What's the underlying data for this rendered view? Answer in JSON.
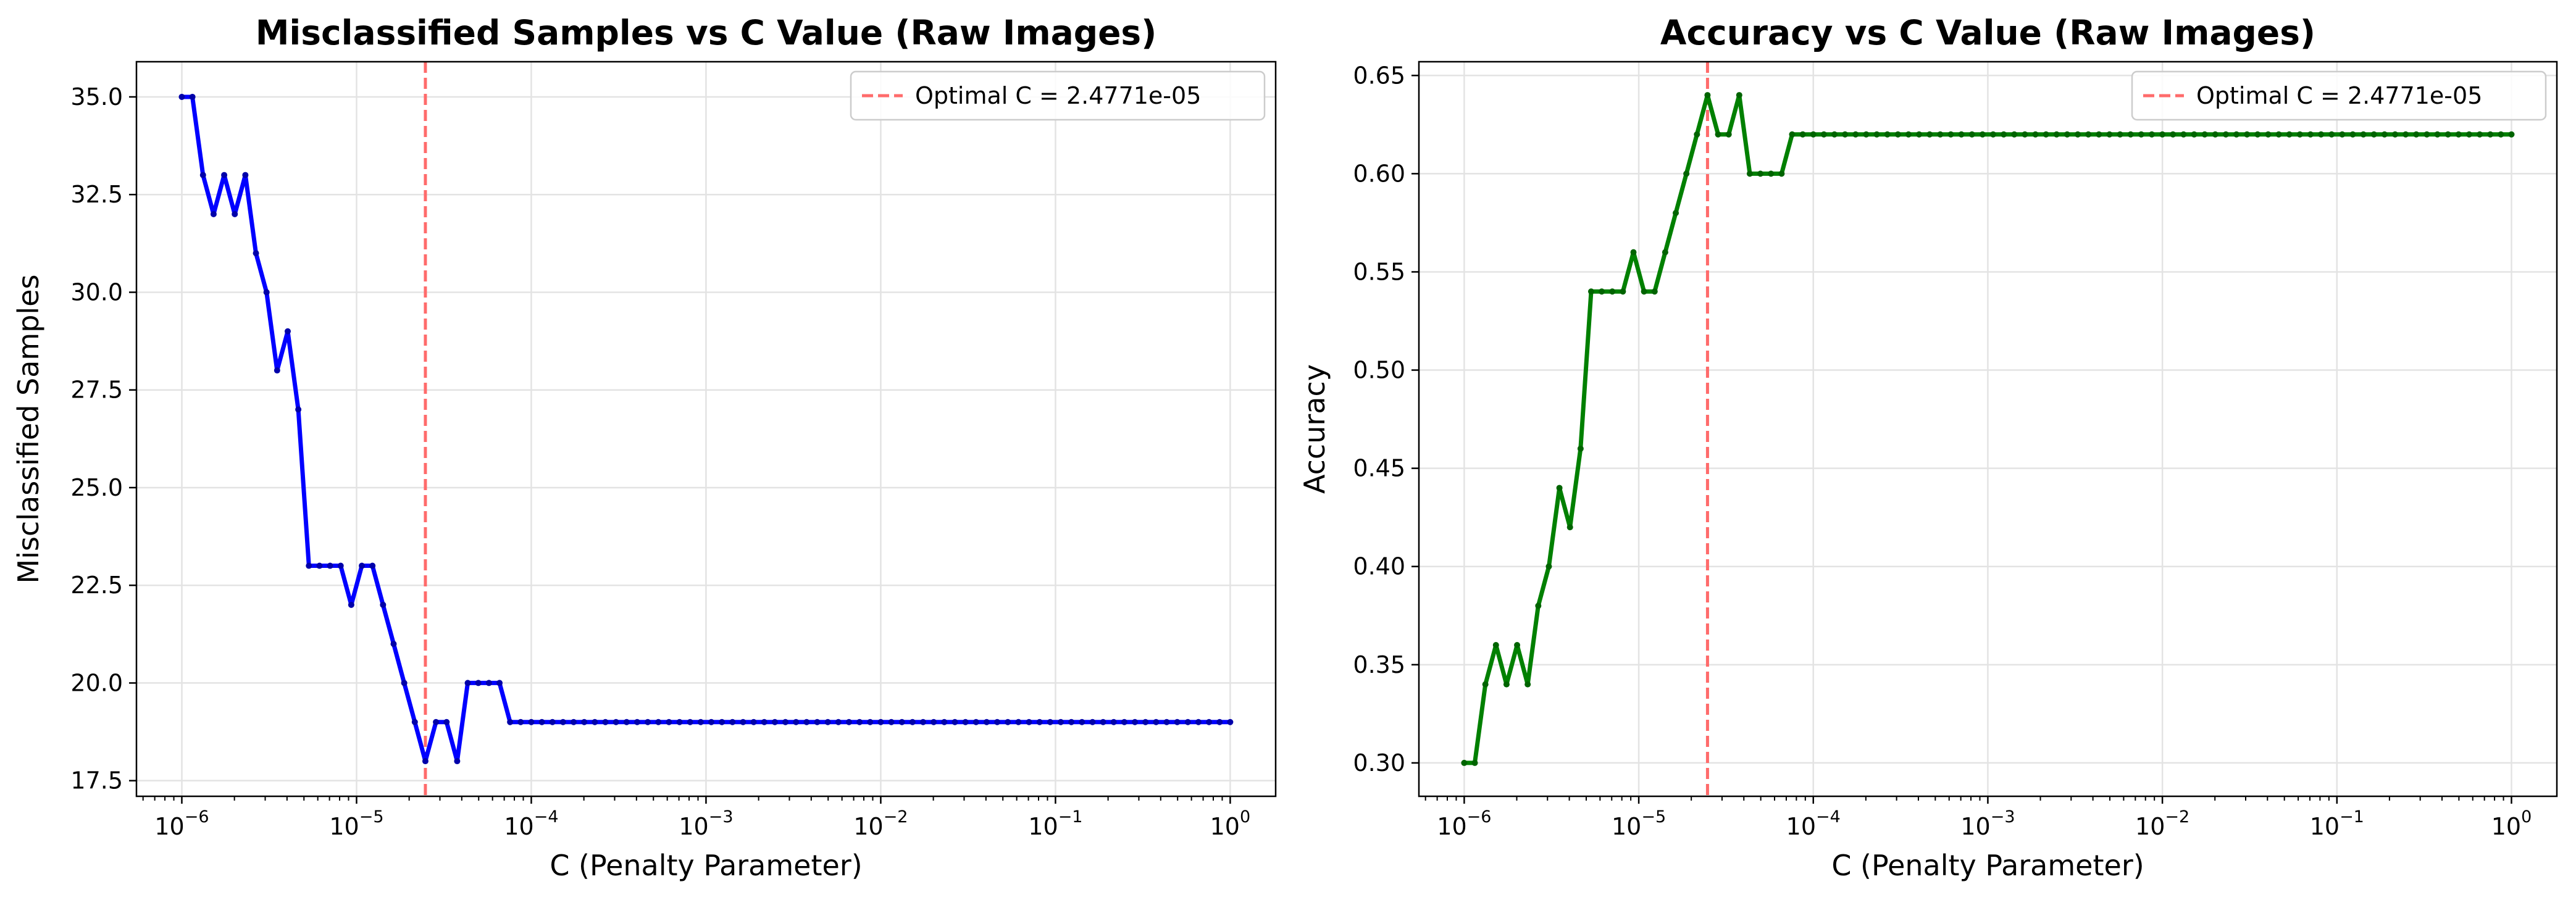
{
  "chart_data": [
    {
      "type": "line",
      "title": "Misclassified Samples vs C Value (Raw Images)",
      "xlabel": "C (Penalty Parameter)",
      "ylabel": "Misclassified Samples",
      "xscale": "log",
      "xlim": [
        5.5e-07,
        1.82
      ],
      "ylim": [
        17.1,
        35.9
      ],
      "grid": true,
      "legend_position": "top-right",
      "legend_label": "Optimal C = 2.4771e-05",
      "optimal_c": 2.4771e-05,
      "line_color": "#0000ff",
      "marker_color": "#0000aa",
      "vline_color": "#ff6b6b",
      "yticks": [
        17.5,
        20.0,
        22.5,
        25.0,
        27.5,
        30.0,
        32.5,
        35.0
      ],
      "ytick_labels": [
        "17.5",
        "20.0",
        "22.5",
        "25.0",
        "27.5",
        "30.0",
        "32.5",
        "35.0"
      ],
      "xticks": [
        -6,
        -5,
        -4,
        -3,
        -2,
        -1,
        0
      ],
      "xtick_bases": [
        "10",
        "10",
        "10",
        "10",
        "10",
        "10",
        "10"
      ],
      "xtick_exps": [
        "−6",
        "−5",
        "−4",
        "−3",
        "−2",
        "−1",
        "0"
      ],
      "values": [
        35,
        35,
        33,
        32,
        33,
        32,
        33,
        31,
        30,
        28,
        29,
        27,
        23,
        23,
        23,
        23,
        22,
        23,
        23,
        22,
        21,
        20,
        19,
        18,
        19,
        19,
        18,
        20,
        20,
        20,
        20,
        19,
        19,
        19,
        19,
        19,
        19,
        19,
        19,
        19,
        19,
        19,
        19,
        19,
        19,
        19,
        19,
        19,
        19,
        19,
        19,
        19,
        19,
        19,
        19,
        19,
        19,
        19,
        19,
        19,
        19,
        19,
        19,
        19,
        19,
        19,
        19,
        19,
        19,
        19,
        19,
        19,
        19,
        19,
        19,
        19,
        19,
        19,
        19,
        19,
        19,
        19,
        19,
        19,
        19,
        19,
        19,
        19,
        19,
        19,
        19,
        19,
        19,
        19,
        19,
        19,
        19,
        19,
        19,
        19
      ]
    },
    {
      "type": "line",
      "title": "Accuracy vs C Value (Raw Images)",
      "xlabel": "C (Penalty Parameter)",
      "ylabel": "Accuracy",
      "xscale": "log",
      "xlim": [
        5.5e-07,
        1.82
      ],
      "ylim": [
        0.283,
        0.657
      ],
      "grid": true,
      "legend_position": "top-right",
      "legend_label": "Optimal C = 2.4771e-05",
      "optimal_c": 2.4771e-05,
      "line_color": "#008000",
      "marker_color": "#006400",
      "vline_color": "#ff6b6b",
      "yticks": [
        0.3,
        0.35,
        0.4,
        0.45,
        0.5,
        0.55,
        0.6,
        0.65
      ],
      "ytick_labels": [
        "0.30",
        "0.35",
        "0.40",
        "0.45",
        "0.50",
        "0.55",
        "0.60",
        "0.65"
      ],
      "xticks": [
        -6,
        -5,
        -4,
        -3,
        -2,
        -1,
        0
      ],
      "xtick_bases": [
        "10",
        "10",
        "10",
        "10",
        "10",
        "10",
        "10"
      ],
      "xtick_exps": [
        "−6",
        "−5",
        "−4",
        "−3",
        "−2",
        "−1",
        "0"
      ],
      "values": [
        0.3,
        0.3,
        0.34,
        0.36,
        0.34,
        0.36,
        0.34,
        0.38,
        0.4,
        0.44,
        0.42,
        0.46,
        0.54,
        0.54,
        0.54,
        0.54,
        0.56,
        0.54,
        0.54,
        0.56,
        0.58,
        0.6,
        0.62,
        0.64,
        0.62,
        0.62,
        0.64,
        0.6,
        0.6,
        0.6,
        0.6,
        0.62,
        0.62,
        0.62,
        0.62,
        0.62,
        0.62,
        0.62,
        0.62,
        0.62,
        0.62,
        0.62,
        0.62,
        0.62,
        0.62,
        0.62,
        0.62,
        0.62,
        0.62,
        0.62,
        0.62,
        0.62,
        0.62,
        0.62,
        0.62,
        0.62,
        0.62,
        0.62,
        0.62,
        0.62,
        0.62,
        0.62,
        0.62,
        0.62,
        0.62,
        0.62,
        0.62,
        0.62,
        0.62,
        0.62,
        0.62,
        0.62,
        0.62,
        0.62,
        0.62,
        0.62,
        0.62,
        0.62,
        0.62,
        0.62,
        0.62,
        0.62,
        0.62,
        0.62,
        0.62,
        0.62,
        0.62,
        0.62,
        0.62,
        0.62,
        0.62,
        0.62,
        0.62,
        0.62,
        0.62,
        0.62,
        0.62,
        0.62,
        0.62,
        0.62
      ]
    }
  ]
}
